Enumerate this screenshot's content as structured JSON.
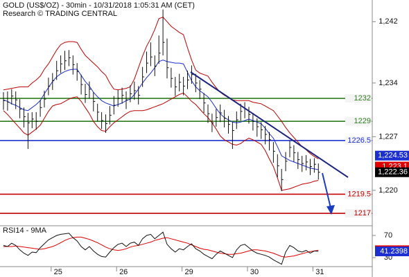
{
  "chart_data": [
    {
      "type": "ohlc",
      "title": "GOLD (US$/OZ) - 30min - 10/31/2018 1:05:31 AM (CET)",
      "subtitle": "Research © TRADING CENTRAL",
      "ylim": [
        1215.47,
        1244.83
      ],
      "yticks": [
        {
          "value": 1242,
          "label": "1,242"
        },
        {
          "value": 1234,
          "label": "1,234"
        },
        {
          "value": 1227,
          "label": "1,227"
        },
        {
          "value": 1220,
          "label": "1,220"
        }
      ],
      "bar_color": "#111111",
      "high": [
        1232.8,
        1232.9,
        1233.2,
        1232.9,
        1231.9,
        1230.8,
        1230.1,
        1230.2,
        1230.2,
        1231.8,
        1233.0,
        1234.7,
        1235.3,
        1236.9,
        1237.6,
        1238.2,
        1238.3,
        1237.6,
        1236.6,
        1235.1,
        1233.9,
        1234.2,
        1232.8,
        1231.3,
        1230.2,
        1229.9,
        1231.0,
        1232.3,
        1233.1,
        1233.4,
        1232.9,
        1233.7,
        1234.2,
        1233.6,
        1236.1,
        1238.1,
        1239.3,
        1237.6,
        1240.2,
        1243.6,
        1239.8,
        1236.0,
        1234.8,
        1235.2,
        1234.8,
        1235.6,
        1236.3,
        1235.2,
        1234.4,
        1232.7,
        1231.2,
        1230.0,
        1230.6,
        1231.2,
        1230.5,
        1229.7,
        1228.9,
        1230.3,
        1231.3,
        1231.5,
        1230.9,
        1230.1,
        1229.4,
        1228.9,
        1228.4,
        1227.6,
        1226.3,
        1224.7,
        1222.8,
        1225.0,
        1226.5,
        1225.9,
        1225.0,
        1224.5,
        1224.6,
        1224.1,
        1224.2,
        1223.5
      ],
      "low": [
        1230.5,
        1230.4,
        1231.2,
        1230.6,
        1229.4,
        1228.2,
        1225.4,
        1228.1,
        1227.9,
        1229.6,
        1230.8,
        1232.4,
        1233.1,
        1234.4,
        1235.3,
        1235.7,
        1236.2,
        1235.1,
        1234.3,
        1232.5,
        1231.4,
        1232.0,
        1230.3,
        1229.0,
        1228.0,
        1227.5,
        1228.6,
        1229.9,
        1230.9,
        1231.3,
        1230.6,
        1231.5,
        1231.8,
        1231.2,
        1233.5,
        1235.3,
        1236.2,
        1234.9,
        1236.5,
        1237.6,
        1234.6,
        1233.4,
        1232.3,
        1232.9,
        1232.4,
        1233.2,
        1233.9,
        1232.8,
        1231.9,
        1230.1,
        1228.8,
        1227.6,
        1228.3,
        1228.9,
        1228.2,
        1227.4,
        1225.4,
        1228.0,
        1229.1,
        1229.4,
        1228.7,
        1227.8,
        1227.0,
        1226.7,
        1226.0,
        1225.2,
        1223.6,
        1221.7,
        1219.9,
        1222.5,
        1224.3,
        1223.7,
        1222.8,
        1222.4,
        1222.6,
        1222.0,
        1222.3,
        1221.4
      ],
      "close": [
        1231.7,
        1231.5,
        1232.3,
        1231.8,
        1230.6,
        1229.6,
        1228.8,
        1229.3,
        1229.0,
        1230.8,
        1231.9,
        1233.6,
        1234.3,
        1235.6,
        1236.5,
        1236.9,
        1237.3,
        1236.4,
        1235.5,
        1233.8,
        1232.5,
        1233.2,
        1231.6,
        1230.2,
        1229.1,
        1228.7,
        1229.8,
        1231.1,
        1232.0,
        1232.4,
        1231.8,
        1232.6,
        1233.0,
        1232.4,
        1234.8,
        1236.6,
        1237.4,
        1236.2,
        1237.9,
        1239.3,
        1236.0,
        1234.6,
        1233.5,
        1234.1,
        1233.6,
        1234.4,
        1235.1,
        1234.0,
        1233.2,
        1231.4,
        1230.0,
        1228.8,
        1229.5,
        1230.1,
        1229.4,
        1228.6,
        1227.8,
        1229.2,
        1230.3,
        1230.6,
        1229.9,
        1229.0,
        1228.3,
        1227.9,
        1227.3,
        1226.6,
        1225.1,
        1223.2,
        1221.4,
        1223.8,
        1225.6,
        1224.9,
        1224.0,
        1223.5,
        1223.7,
        1223.1,
        1223.4,
        1222.36
      ],
      "series": [
        {
          "color": "#c00000",
          "values": [
            1233.1,
            1233.2,
            1233.3,
            1233.4,
            1233.5,
            1233.5,
            1233.5,
            1234.0,
            1234.4,
            1234.9,
            1235.8,
            1236.5,
            1237.4,
            1238.3,
            1239.0,
            1239.3,
            1239.4,
            1239.4,
            1239.3,
            1238.4,
            1237.6,
            1237.1,
            1236.6,
            1236.1,
            1235.5,
            1235.0,
            1234.0,
            1233.2,
            1233.1,
            1233.2,
            1233.3,
            1233.5,
            1234.5,
            1236.0,
            1237.5,
            1238.8,
            1239.8,
            1241.0,
            1242.4,
            1242.6,
            1242.0,
            1241.4,
            1241.0,
            1240.6,
            1240.3,
            1238.6,
            1237.0,
            1235.7,
            1235.3,
            1235.1,
            1234.9,
            1234.1,
            1233.4,
            1232.8,
            1232.4,
            1232.1,
            1231.8,
            1231.7,
            1231.7,
            1231.7,
            1231.7,
            1231.5,
            1231.4,
            1231.3,
            1231.0,
            1230.7,
            1230.4,
            1229.7,
            1229.0,
            1228.2,
            1227.5,
            1226.9,
            1226.3,
            1225.7,
            1225.3,
            1224.8,
            1224.4,
            1224.1
          ]
        },
        {
          "color": "#1c2fd1",
          "values": [
            1231.8,
            1231.6,
            1231.3,
            1231.1,
            1230.8,
            1230.5,
            1230.4,
            1230.8,
            1231.2,
            1231.7,
            1232.6,
            1233.4,
            1234.2,
            1234.8,
            1235.2,
            1235.5,
            1235.7,
            1235.8,
            1235.8,
            1235.0,
            1234.2,
            1233.6,
            1232.8,
            1232.2,
            1231.7,
            1231.4,
            1231.2,
            1231.0,
            1231.2,
            1231.4,
            1231.7,
            1231.9,
            1232.5,
            1233.2,
            1234.0,
            1234.7,
            1235.3,
            1236.0,
            1236.8,
            1237.0,
            1236.8,
            1236.7,
            1236.6,
            1236.6,
            1236.5,
            1235.4,
            1234.3,
            1233.5,
            1233.0,
            1232.6,
            1232.2,
            1231.5,
            1230.7,
            1230.0,
            1229.5,
            1229.2,
            1228.9,
            1228.8,
            1228.9,
            1229.1,
            1229.3,
            1229.1,
            1228.9,
            1228.7,
            1228.1,
            1227.4,
            1226.8,
            1225.7,
            1224.5,
            1224.2,
            1223.9,
            1223.7,
            1223.5,
            1223.3,
            1223.1,
            1222.9,
            1222.8,
            1222.7
          ]
        },
        {
          "color": "#c00000",
          "values": [
            1230.4,
            1229.9,
            1229.3,
            1228.7,
            1228.1,
            1227.5,
            1227.2,
            1227.6,
            1228.0,
            1228.5,
            1229.4,
            1230.3,
            1231.0,
            1231.2,
            1231.3,
            1231.6,
            1231.9,
            1232.1,
            1232.2,
            1231.6,
            1230.8,
            1230.0,
            1229.0,
            1228.3,
            1227.8,
            1227.7,
            1228.3,
            1228.8,
            1229.2,
            1229.6,
            1230.0,
            1230.3,
            1230.4,
            1230.4,
            1230.4,
            1230.5,
            1230.7,
            1230.9,
            1231.1,
            1231.3,
            1231.6,
            1231.9,
            1232.2,
            1232.5,
            1232.7,
            1232.2,
            1231.6,
            1231.2,
            1230.6,
            1230.0,
            1229.5,
            1228.8,
            1228.0,
            1227.1,
            1226.6,
            1226.3,
            1226.0,
            1225.9,
            1226.1,
            1226.5,
            1226.8,
            1226.6,
            1226.3,
            1226.0,
            1225.2,
            1224.1,
            1223.1,
            1221.6,
            1220.0,
            1220.1,
            1220.2,
            1220.4,
            1220.6,
            1220.8,
            1220.9,
            1221.0,
            1221.2,
            1221.3
          ]
        }
      ],
      "levels": [
        {
          "value": 1232,
          "color": "#2e7d1e"
        },
        {
          "value": 1229,
          "color": "#2e7d1e"
        },
        {
          "value": 1226.5,
          "color": "#1c2fd1"
        },
        {
          "value": 1219.5,
          "color": "#c00000"
        },
        {
          "value": 1217,
          "color": "#c00000"
        }
      ],
      "price_tags": [
        {
          "value": 1224.53,
          "label": "1,224.53",
          "color": "#1c2fd1"
        },
        {
          "value": 1223.1,
          "label": "1,223.1",
          "color": "#e00000"
        },
        {
          "value": 1222.36,
          "label": "1,222.36",
          "color": "#000000"
        }
      ]
    },
    {
      "type": "line",
      "title": "RSI14 - 9MA",
      "ylim": [
        13.75,
        85
      ],
      "yticks": [
        70,
        30
      ],
      "categories": [
        null,
        null,
        null,
        null,
        null,
        null,
        null,
        null,
        null,
        null,
        null,
        null,
        "25",
        null,
        null,
        null,
        null,
        null,
        null,
        null,
        null,
        null,
        null,
        null,
        null,
        null,
        null,
        null,
        "26",
        null,
        null,
        null,
        null,
        null,
        null,
        null,
        null,
        null,
        null,
        null,
        null,
        null,
        null,
        null,
        "29",
        null,
        null,
        null,
        null,
        null,
        null,
        null,
        null,
        null,
        null,
        null,
        null,
        null,
        null,
        null,
        "30",
        null,
        null,
        null,
        null,
        null,
        null,
        null,
        null,
        null,
        null,
        null,
        null,
        null,
        null,
        null,
        "31",
        null
      ],
      "series": [
        {
          "color": "#e00000",
          "values": [
            50,
            50,
            50,
            51,
            50,
            49,
            48,
            47,
            46,
            45,
            46,
            48,
            50,
            53,
            57,
            61,
            64,
            66,
            67,
            67,
            65,
            63,
            60,
            57,
            53,
            49,
            46,
            44,
            43,
            44,
            46,
            49,
            51,
            52,
            54,
            56,
            58,
            61,
            63,
            65,
            66,
            64,
            62,
            60,
            58,
            56,
            53,
            50,
            47,
            45,
            44,
            42,
            40,
            38,
            37,
            36,
            36,
            37,
            38,
            40,
            42,
            44,
            44,
            43,
            42,
            40,
            38,
            35,
            32,
            31,
            32,
            33,
            35,
            37,
            39,
            41,
            42,
            43.2806
          ]
        },
        {
          "color": "#111111",
          "values": [
            52,
            50,
            56,
            52,
            44,
            38,
            34,
            40,
            39,
            48,
            55,
            62,
            66,
            70,
            72,
            73,
            74,
            66,
            60,
            50,
            44,
            50,
            42,
            36,
            32,
            31,
            40,
            48,
            54,
            56,
            50,
            56,
            58,
            52,
            64,
            70,
            72,
            64,
            70,
            76,
            54,
            46,
            40,
            46,
            44,
            50,
            55,
            46,
            42,
            36,
            32,
            28,
            36,
            42,
            38,
            34,
            30,
            44,
            52,
            54,
            48,
            42,
            38,
            36,
            34,
            31,
            26,
            22,
            18,
            40,
            52,
            48,
            42,
            40,
            43,
            38,
            42,
            41.2398
          ]
        }
      ],
      "value_tags": [
        {
          "value": 43.2806,
          "color": "#e00000"
        },
        {
          "value": 41.2398,
          "color": "#1c2fd1"
        }
      ]
    }
  ]
}
